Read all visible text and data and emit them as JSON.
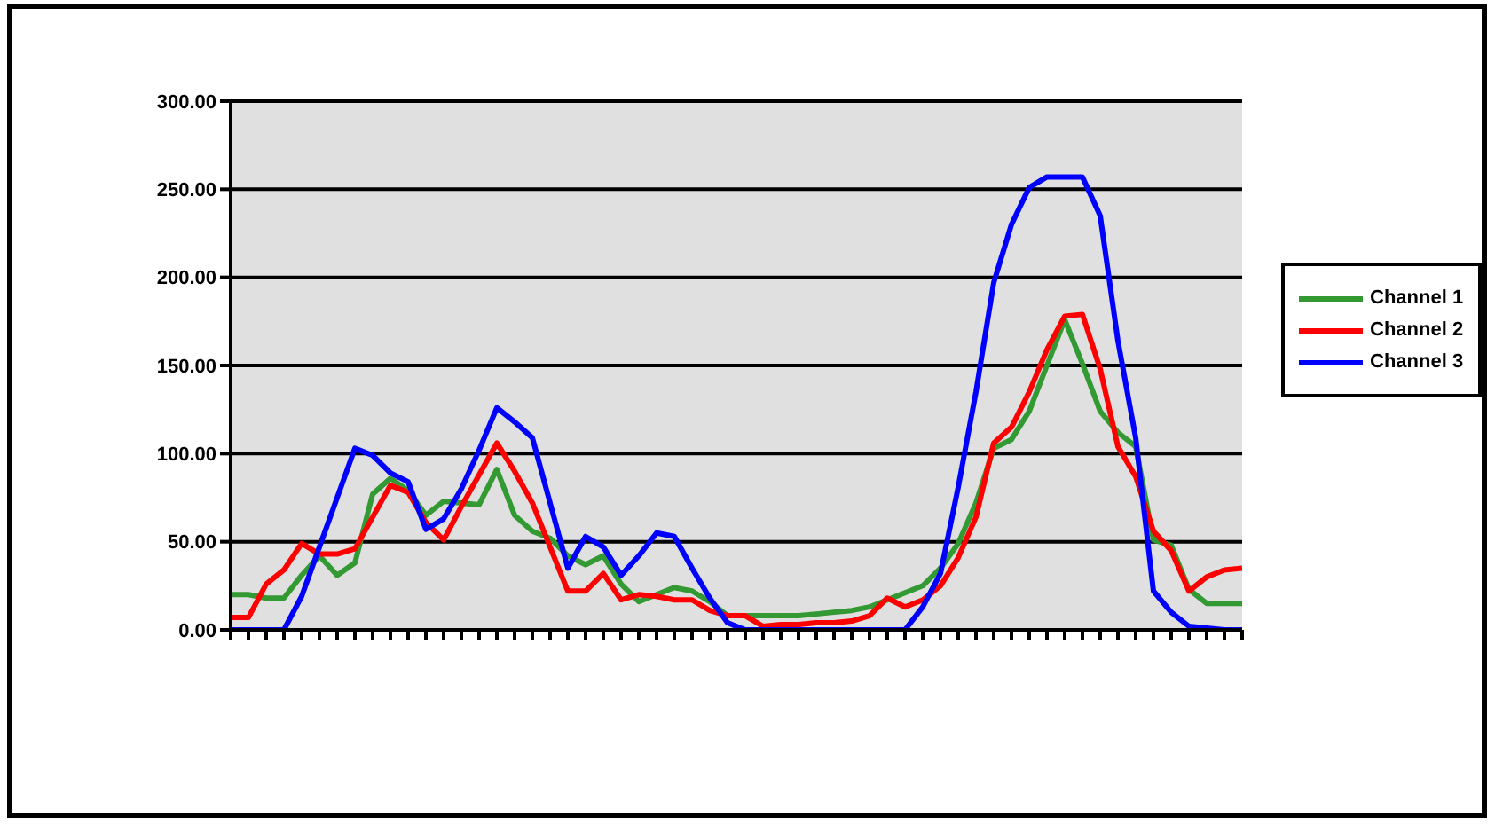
{
  "chart_data": {
    "type": "line",
    "legend": "right",
    "grid": "y",
    "marker": "none",
    "line_style": "solid",
    "ylim": [
      0,
      300
    ],
    "yticks": [
      {
        "value": 0,
        "label": "0.00"
      },
      {
        "value": 50,
        "label": "50.00"
      },
      {
        "value": 100,
        "label": "100.00"
      },
      {
        "value": 150,
        "label": "150.00"
      },
      {
        "value": 200,
        "label": "200.00"
      },
      {
        "value": 250,
        "label": "250.00"
      },
      {
        "value": 300,
        "label": "300.00"
      }
    ],
    "categories": [
      null,
      null,
      null,
      null,
      null,
      null,
      null,
      null,
      null,
      null,
      null,
      null,
      null,
      null,
      null,
      null,
      null,
      null,
      null,
      null,
      null,
      null,
      null,
      null,
      null,
      null,
      null,
      null,
      null,
      null,
      null,
      null,
      null,
      null,
      null,
      null,
      null,
      null,
      null,
      null,
      null,
      null,
      null,
      null,
      null,
      null,
      null,
      null,
      null,
      null,
      null,
      null,
      null,
      null,
      null,
      null,
      null,
      null
    ],
    "series": [
      {
        "name": "Channel 1",
        "color": "#339933",
        "values": [
          20,
          20,
          18,
          18,
          31,
          42,
          31,
          38,
          77,
          86,
          79,
          65,
          73,
          72,
          71,
          91,
          65,
          56,
          52,
          42,
          37,
          42,
          26,
          16,
          20,
          24,
          22,
          16,
          8,
          8,
          8,
          8,
          8,
          9,
          10,
          11,
          13,
          17,
          21,
          25,
          35,
          49,
          72,
          103,
          108,
          124,
          150,
          176,
          151,
          124,
          112,
          104,
          51,
          48,
          23,
          15,
          15,
          15
        ]
      },
      {
        "name": "Channel 2",
        "color": "#ff0000",
        "values": [
          7,
          7,
          26,
          34,
          49,
          43,
          43,
          46,
          64,
          82,
          78,
          61,
          51,
          70,
          88,
          106,
          90,
          72,
          47,
          22,
          22,
          32,
          17,
          20,
          19,
          17,
          17,
          11,
          8,
          8,
          2,
          3,
          3,
          4,
          4,
          5,
          8,
          18,
          13,
          17,
          25,
          41,
          64,
          106,
          115,
          135,
          159,
          178,
          179,
          148,
          104,
          87,
          56,
          45,
          22,
          30,
          34,
          35
        ]
      },
      {
        "name": "Channel 3",
        "color": "#0000ff",
        "values": [
          0,
          0,
          0,
          0,
          19,
          47,
          75,
          103,
          99,
          89,
          84,
          57,
          63,
          80,
          102,
          126,
          118,
          109,
          72,
          35,
          53,
          47,
          31,
          42,
          55,
          53,
          35,
          18,
          4,
          0,
          0,
          0,
          0,
          0,
          0,
          0,
          0,
          0,
          0,
          13,
          32,
          81,
          135,
          197,
          230,
          251,
          257,
          257,
          257,
          235,
          164,
          109,
          22,
          10,
          2,
          1,
          0,
          0
        ]
      }
    ]
  }
}
